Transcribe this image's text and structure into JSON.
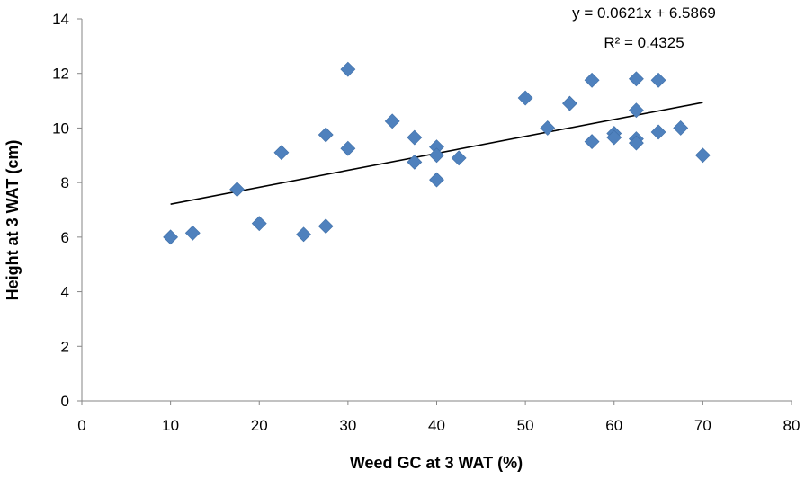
{
  "chart_data": {
    "type": "scatter",
    "xlabel": "Weed GC at 3 WAT (%)",
    "ylabel": "Height at 3 WAT (cm)",
    "xlim": [
      0,
      80
    ],
    "ylim": [
      0,
      14
    ],
    "x_ticks": [
      0,
      10,
      20,
      30,
      40,
      50,
      60,
      70,
      80
    ],
    "y_ticks": [
      0,
      2,
      4,
      6,
      8,
      10,
      12,
      14
    ],
    "grid": false,
    "marker": "diamond",
    "marker_color": "#4F81BD",
    "trendline_color": "#000000",
    "points": [
      {
        "x": 10,
        "y": 6.0
      },
      {
        "x": 12.5,
        "y": 6.15
      },
      {
        "x": 17.5,
        "y": 7.75
      },
      {
        "x": 20,
        "y": 6.5
      },
      {
        "x": 22.5,
        "y": 9.1
      },
      {
        "x": 25,
        "y": 6.1
      },
      {
        "x": 27.5,
        "y": 6.4
      },
      {
        "x": 27.5,
        "y": 9.75
      },
      {
        "x": 30,
        "y": 9.25
      },
      {
        "x": 30,
        "y": 12.15
      },
      {
        "x": 35,
        "y": 10.25
      },
      {
        "x": 37.5,
        "y": 9.65
      },
      {
        "x": 37.5,
        "y": 8.75
      },
      {
        "x": 40,
        "y": 9.3
      },
      {
        "x": 40,
        "y": 9.0
      },
      {
        "x": 40,
        "y": 8.1
      },
      {
        "x": 42.5,
        "y": 8.9
      },
      {
        "x": 50,
        "y": 11.1
      },
      {
        "x": 52.5,
        "y": 10.0
      },
      {
        "x": 55,
        "y": 10.9
      },
      {
        "x": 57.5,
        "y": 11.75
      },
      {
        "x": 57.5,
        "y": 9.5
      },
      {
        "x": 60,
        "y": 9.8
      },
      {
        "x": 60,
        "y": 9.65
      },
      {
        "x": 62.5,
        "y": 11.8
      },
      {
        "x": 62.5,
        "y": 10.65
      },
      {
        "x": 62.5,
        "y": 9.6
      },
      {
        "x": 62.5,
        "y": 9.45
      },
      {
        "x": 65,
        "y": 11.75
      },
      {
        "x": 65,
        "y": 9.85
      },
      {
        "x": 67.5,
        "y": 10.0
      },
      {
        "x": 70,
        "y": 9.0
      }
    ],
    "trendline": {
      "slope": 0.0621,
      "intercept": 6.5869,
      "x_range": [
        10,
        70
      ],
      "equation": "y = 0.0621x + 6.5869",
      "r_squared": "R² = 0.4325"
    }
  }
}
